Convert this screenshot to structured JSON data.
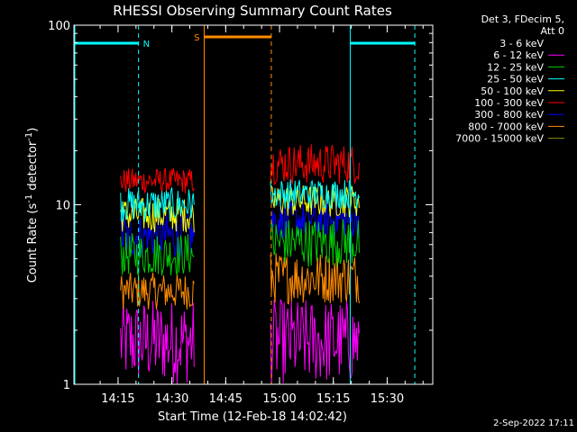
{
  "chart_data": {
    "type": "line",
    "title": "RHESSI Observing Summary Count Rates",
    "xlabel": "Start Time (12-Feb-18 14:02:42)",
    "ylabel_main": "Count Rate (s",
    "ylabel_sup1": "-1",
    "ylabel_mid": " detector",
    "ylabel_sup2": "-1",
    "ylabel_end": ")",
    "y_scale": "log",
    "ylim": [
      1,
      100
    ],
    "y_ticks": [
      {
        "value": 1,
        "label": "1"
      },
      {
        "value": 10,
        "label": "10"
      },
      {
        "value": 100,
        "label": "100"
      }
    ],
    "x_range_minutes": [
      0,
      100
    ],
    "x_ticks": [
      {
        "value": 12.3,
        "label": "14:15"
      },
      {
        "value": 27.3,
        "label": "14:30"
      },
      {
        "value": 42.3,
        "label": "14:45"
      },
      {
        "value": 57.3,
        "label": "15:00"
      },
      {
        "value": 72.3,
        "label": "15:15"
      },
      {
        "value": 87.3,
        "label": "15:30"
      }
    ],
    "legend_header": [
      "Det 3, FDecim 5,",
      "Att 0"
    ],
    "legend_position": "right",
    "series": [
      {
        "name": "3 - 6 keV",
        "color": "#000000"
      },
      {
        "name": "6 - 12 keV",
        "color": "#ff00ff"
      },
      {
        "name": "12 - 25 keV",
        "color": "#00cc00"
      },
      {
        "name": "25 - 50 keV",
        "color": "#00ffff"
      },
      {
        "name": "50 - 100 keV",
        "color": "#ffff00"
      },
      {
        "name": "100 - 300 keV",
        "color": "#ff0000"
      },
      {
        "name": "300 - 800 keV",
        "color": "#0000ff"
      },
      {
        "name": "800 - 7000 keV",
        "color": "#ff8c00"
      },
      {
        "name": "7000 - 15000 keV",
        "color": "#8b8b00"
      }
    ],
    "segments": [
      {
        "start": 13.0,
        "end": 33.5
      },
      {
        "start": 54.8,
        "end": 79.5
      }
    ],
    "bands": [
      {
        "series": 1,
        "low": 1.0,
        "high": 3.0
      },
      {
        "series": 7,
        "low": 2.6,
        "high": 4.2
      },
      {
        "series": 5,
        "low": 11.5,
        "high": 16.0
      },
      {
        "series": 6,
        "low": 5.0,
        "high": 9.0
      },
      {
        "series": 2,
        "low": 4.0,
        "high": 7.0
      },
      {
        "series": 4,
        "low": 7.0,
        "high": 11.0
      },
      {
        "series": 3,
        "low": 8.0,
        "high": 12.5
      }
    ],
    "bands_seg2": [
      {
        "series": 1,
        "low": 1.0,
        "high": 3.0
      },
      {
        "series": 7,
        "low": 2.8,
        "high": 5.5
      },
      {
        "series": 5,
        "low": 13.0,
        "high": 22.0
      },
      {
        "series": 6,
        "low": 6.5,
        "high": 10.5
      },
      {
        "series": 2,
        "low": 4.5,
        "high": 8.5
      },
      {
        "series": 4,
        "low": 8.5,
        "high": 13.0
      },
      {
        "series": 3,
        "low": 9.5,
        "high": 14.0
      }
    ],
    "annotations": {
      "night_label": "N",
      "saa_label": "S",
      "night_periods": [
        {
          "start": 0.0,
          "end": 18.0
        },
        {
          "start": 77.0,
          "end": 95.0
        }
      ],
      "saa_period": {
        "start": 36.3,
        "end": 55.0
      },
      "night_color": "#00ffff",
      "saa_color": "#ff8c00"
    },
    "timestamp": "2-Sep-2022 17:11"
  }
}
